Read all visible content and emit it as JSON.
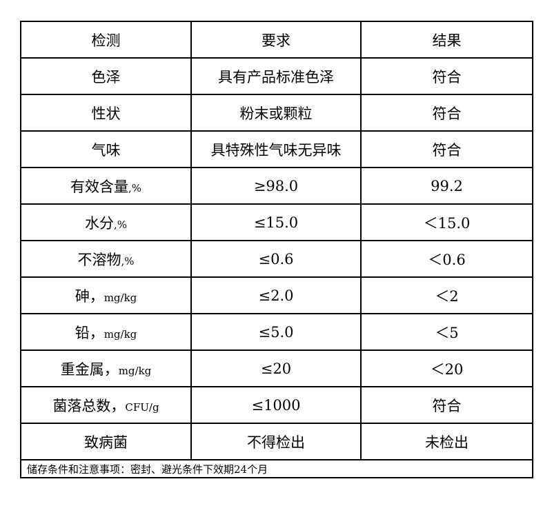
{
  "headers": [
    "检测",
    "要求",
    "结果"
  ],
  "rows": [
    {
      "item": "色泽",
      "unit": "",
      "requirement": "具有产品标准色泽",
      "result": "符合"
    },
    {
      "item": "性状",
      "unit": "",
      "requirement": "粉末或颗粒",
      "result": "符合"
    },
    {
      "item": "气味",
      "unit": "",
      "requirement": "具特殊性气味无异味",
      "result": "符合"
    },
    {
      "item": "有效含量",
      "unit": ",%",
      "requirement": "≥98.0",
      "result": "99.2"
    },
    {
      "item": "水分",
      "unit": ",%",
      "requirement": "≤15.0",
      "result": "＜15.0"
    },
    {
      "item": "不溶物",
      "unit": ",%",
      "requirement": "≤0.6",
      "result": "＜0.6"
    },
    {
      "item": "砷，",
      "unit": "mg/kg",
      "requirement": "≤2.0",
      "result": "＜2"
    },
    {
      "item": "铅，",
      "unit": "mg/kg",
      "requirement": "≤5.0",
      "result": "＜5"
    },
    {
      "item": "重金属，",
      "unit": "mg/kg",
      "requirement": "≤20",
      "result": "＜20"
    },
    {
      "item": "菌落总数，",
      "unit": "CFU/g",
      "requirement": "≤1000",
      "result": "符合"
    },
    {
      "item": "致病菌",
      "unit": "",
      "requirement": "不得检出",
      "result": "未检出"
    }
  ],
  "footer_note": "储存条件和注意事项：密封、避光条件下效期24个月"
}
